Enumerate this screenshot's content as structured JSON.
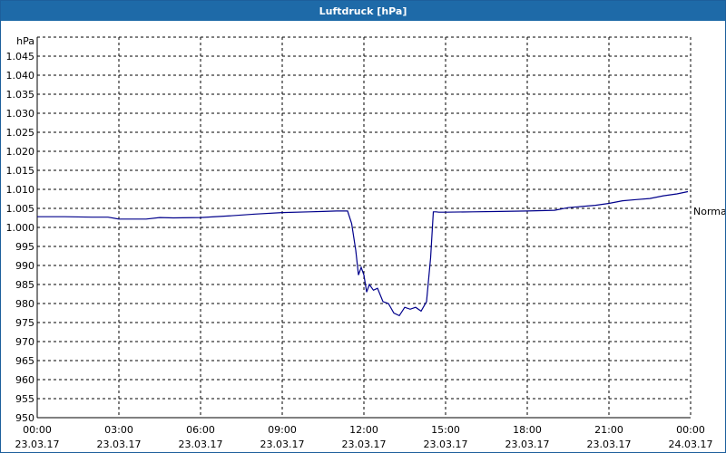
{
  "window": {
    "title": "Luftdruck [hPa]"
  },
  "chart_data": {
    "type": "line",
    "title": "Luftdruck [hPa]",
    "ylabel": "hPa",
    "ylim": [
      950,
      1050
    ],
    "yticks": [
      950,
      955,
      960,
      965,
      970,
      975,
      980,
      985,
      990,
      995,
      1000,
      1005,
      1010,
      1015,
      1020,
      1025,
      1030,
      1035,
      1040,
      1045
    ],
    "ytick_labels": [
      "950",
      "955",
      "960",
      "965",
      "970",
      "975",
      "980",
      "985",
      "990",
      "995",
      "1.000",
      "1.005",
      "1.010",
      "1.015",
      "1.020",
      "1.025",
      "1.030",
      "1.035",
      "1.040",
      "1.045"
    ],
    "xlim_hours": [
      0,
      24
    ],
    "xticks": [
      {
        "time": "00:00",
        "date": "23.03.17"
      },
      {
        "time": "03:00",
        "date": "23.03.17"
      },
      {
        "time": "06:00",
        "date": "23.03.17"
      },
      {
        "time": "09:00",
        "date": "23.03.17"
      },
      {
        "time": "12:00",
        "date": "23.03.17"
      },
      {
        "time": "15:00",
        "date": "23.03.17"
      },
      {
        "time": "18:00",
        "date": "23.03.17"
      },
      {
        "time": "21:00",
        "date": "23.03.17"
      },
      {
        "time": "00:00",
        "date": "24.03.17"
      }
    ],
    "reference_line": {
      "label": "Normal",
      "value": 1004.5
    },
    "grid": true,
    "series": [
      {
        "color": "#00008b",
        "x": [
          0,
          1,
          2,
          2.6,
          3,
          4,
          4.5,
          5,
          6,
          7,
          8,
          9,
          10,
          10.5,
          11,
          11.4,
          11.55,
          11.7,
          11.8,
          11.9,
          12.0,
          12.1,
          12.2,
          12.35,
          12.5,
          12.7,
          12.9,
          13.1,
          13.3,
          13.5,
          13.7,
          13.9,
          14.1,
          14.3,
          14.45,
          14.55,
          14.65,
          14.75,
          15,
          16,
          17,
          18,
          18.5,
          19,
          19.5,
          20,
          20.5,
          21,
          21.5,
          22,
          22.5,
          23,
          23.5,
          23.9
        ],
        "values": [
          1002.8,
          1002.8,
          1002.7,
          1002.7,
          1002.2,
          1002.2,
          1002.6,
          1002.5,
          1002.6,
          1003.0,
          1003.5,
          1003.9,
          1004.1,
          1004.2,
          1004.3,
          1004.3,
          1001.0,
          994.0,
          987.5,
          989.5,
          987.5,
          983.0,
          985.0,
          983.5,
          984.0,
          980.5,
          980.0,
          977.5,
          976.8,
          979.0,
          978.5,
          979.0,
          978.0,
          980.5,
          992.0,
          1004.1,
          1004.1,
          1004.0,
          1004.0,
          1004.1,
          1004.2,
          1004.3,
          1004.4,
          1004.5,
          1005.2,
          1005.5,
          1005.8,
          1006.3,
          1007.0,
          1007.3,
          1007.6,
          1008.3,
          1008.8,
          1009.4
        ]
      }
    ]
  }
}
